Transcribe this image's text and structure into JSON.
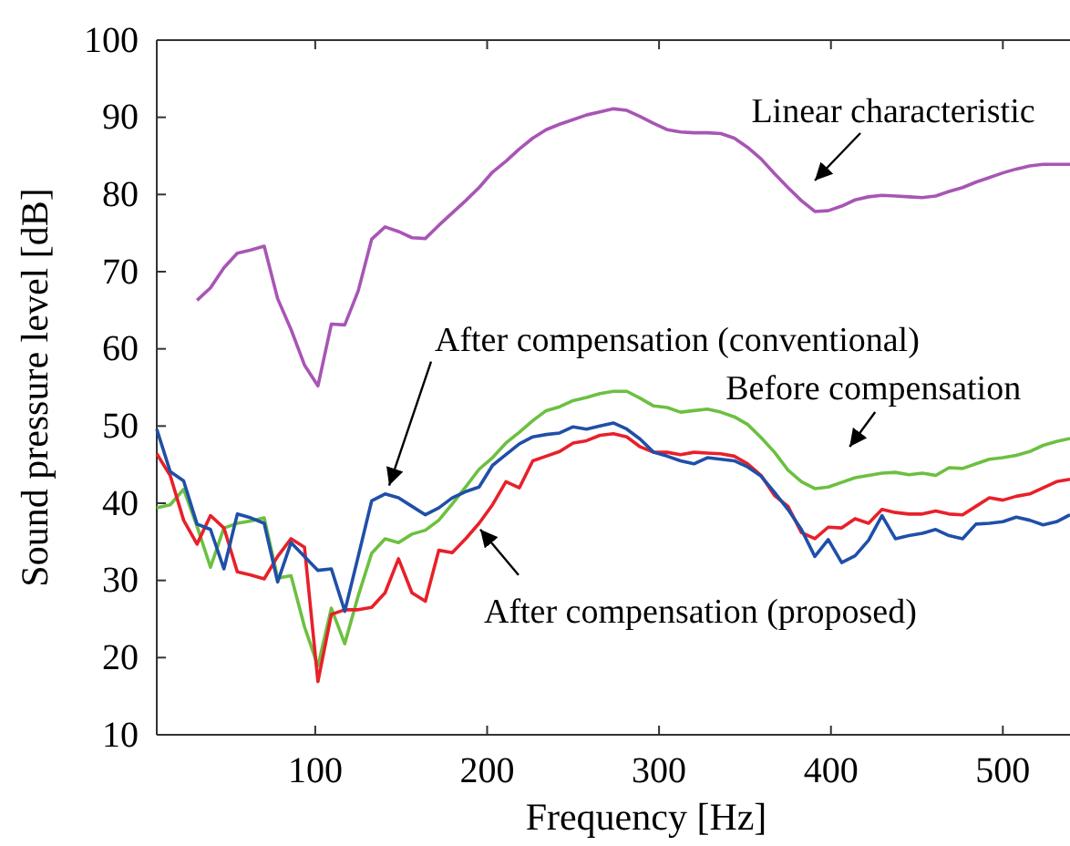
{
  "chart_data": {
    "type": "line",
    "xlabel": "Frequency [Hz]",
    "ylabel": "Sound pressure level [dB]",
    "x": [
      7.8125,
      15.625,
      23.4375,
      31.25,
      39.0625,
      46.875,
      54.6875,
      62.5,
      70.3125,
      78.125,
      85.9375,
      93.75,
      101.5625,
      109.375,
      117.1875,
      125,
      132.8125,
      140.625,
      148.4375,
      156.25,
      164.0625,
      171.875,
      179.6875,
      187.5,
      195.3125,
      203.125,
      210.9375,
      218.75,
      226.5625,
      234.375,
      242.1875,
      250,
      257.8125,
      265.625,
      273.4375,
      281.25,
      289.0625,
      296.875,
      304.6875,
      312.5,
      320.3125,
      328.125,
      335.9375,
      343.75,
      351.5625,
      359.375,
      367.1875,
      375,
      382.8125,
      390.625,
      398.4375,
      406.25,
      414.0625,
      421.875,
      429.6875,
      437.5,
      445.3125,
      453.125,
      460.9375,
      468.75,
      476.5625,
      484.375,
      492.1875,
      500,
      507.8125,
      515.625,
      523.4375,
      531.25,
      539.0625
    ],
    "series": [
      {
        "color": "#a855b5",
        "values": [
          null,
          null,
          null,
          66.3,
          67.9,
          70.5,
          72.4,
          72.8,
          73.3,
          66.5,
          62.5,
          57.9,
          55.2,
          63.2,
          63.1,
          67.5,
          74.2,
          75.8,
          75.2,
          74.4,
          74.3,
          76.0,
          77.6,
          79.2,
          80.9,
          82.9,
          84.3,
          85.9,
          87.3,
          88.4,
          89.1,
          89.7,
          90.3,
          90.7,
          91.1,
          90.9,
          90.1,
          89.2,
          88.4,
          88.1,
          88.0,
          88.0,
          87.9,
          87.3,
          86.1,
          84.6,
          82.7,
          80.9,
          79.2,
          77.8,
          77.9,
          78.5,
          79.3,
          79.7,
          79.9,
          79.8,
          79.7,
          79.6,
          79.8,
          80.4,
          80.9,
          81.6,
          82.2,
          82.8,
          83.3,
          83.7,
          83.9,
          83.9,
          83.9
        ]
      },
      {
        "color": "#6cc040",
        "values": [
          39.4,
          39.8,
          41.8,
          37.0,
          31.7,
          36.8,
          37.4,
          37.7,
          38.1,
          30.3,
          30.6,
          24.0,
          18.9,
          26.4,
          21.8,
          28.0,
          33.5,
          35.4,
          34.9,
          36.0,
          36.5,
          37.8,
          39.9,
          42.1,
          44.4,
          45.9,
          47.8,
          49.2,
          50.7,
          52.0,
          52.5,
          53.3,
          53.7,
          54.2,
          54.5,
          54.5,
          53.6,
          52.6,
          52.4,
          51.8,
          52.0,
          52.2,
          51.8,
          51.2,
          50.2,
          48.5,
          46.6,
          44.3,
          42.8,
          41.9,
          42.1,
          42.7,
          43.3,
          43.6,
          43.9,
          44.0,
          43.7,
          43.9,
          43.6,
          44.6,
          44.5,
          45.1,
          45.7,
          45.9,
          46.2,
          46.7,
          47.5,
          48.0,
          48.4
        ]
      },
      {
        "color": "#e8202a",
        "values": [
          46.4,
          43.6,
          37.8,
          34.7,
          38.4,
          36.8,
          31.1,
          30.7,
          30.2,
          33.1,
          35.4,
          34.3,
          16.9,
          25.6,
          26.2,
          26.2,
          26.5,
          28.4,
          32.8,
          28.4,
          27.3,
          33.9,
          33.6,
          35.4,
          37.4,
          39.8,
          42.8,
          42.0,
          45.5,
          46.1,
          46.7,
          47.8,
          48.1,
          48.8,
          49.0,
          48.6,
          47.3,
          46.6,
          46.6,
          46.3,
          46.6,
          46.5,
          46.4,
          46.1,
          45.1,
          43.6,
          41.0,
          39.6,
          36.2,
          35.4,
          36.9,
          36.8,
          38.0,
          37.4,
          39.2,
          38.8,
          38.6,
          38.6,
          39.0,
          38.6,
          38.5,
          39.6,
          40.7,
          40.4,
          40.9,
          41.2,
          42.0,
          42.8,
          43.1
        ]
      },
      {
        "color": "#1f4fa8",
        "values": [
          49.6,
          44.1,
          42.9,
          37.3,
          36.6,
          31.5,
          38.6,
          38.1,
          37.4,
          29.8,
          34.9,
          33.1,
          31.3,
          31.5,
          26.0,
          33.1,
          40.3,
          41.2,
          40.7,
          39.6,
          38.5,
          39.4,
          40.7,
          41.5,
          42.1,
          44.9,
          46.3,
          47.7,
          48.6,
          48.9,
          49.1,
          49.9,
          49.6,
          50.0,
          50.4,
          49.6,
          48.3,
          46.6,
          46.1,
          45.5,
          45.1,
          45.9,
          45.7,
          45.5,
          44.7,
          43.5,
          41.4,
          39.2,
          36.6,
          33.1,
          35.3,
          32.3,
          33.2,
          35.2,
          38.4,
          35.4,
          35.8,
          36.1,
          36.6,
          35.8,
          35.4,
          37.3,
          37.4,
          37.6,
          38.2,
          37.8,
          37.2,
          37.6,
          38.5
        ]
      }
    ],
    "xlim": [
      7.8125,
      539.0625
    ],
    "xticks": [
      100,
      200,
      300,
      400,
      500
    ],
    "ylim": [
      10,
      100
    ],
    "yticks": [
      10,
      20,
      30,
      40,
      50,
      60,
      70,
      80,
      90,
      100
    ],
    "grid": false,
    "marker": "none",
    "line_style": "solid",
    "annotations": [
      {
        "text": "Linear characteristic",
        "x": 390.625,
        "y": 77.8
      },
      {
        "text": "After compensation (conventional)",
        "x": 143,
        "y": 42.3
      },
      {
        "text": "Before compensation",
        "x": 414.0625,
        "y": 43.3
      },
      {
        "text": "After compensation (proposed)",
        "x": 196,
        "y": 36.6
      }
    ]
  }
}
